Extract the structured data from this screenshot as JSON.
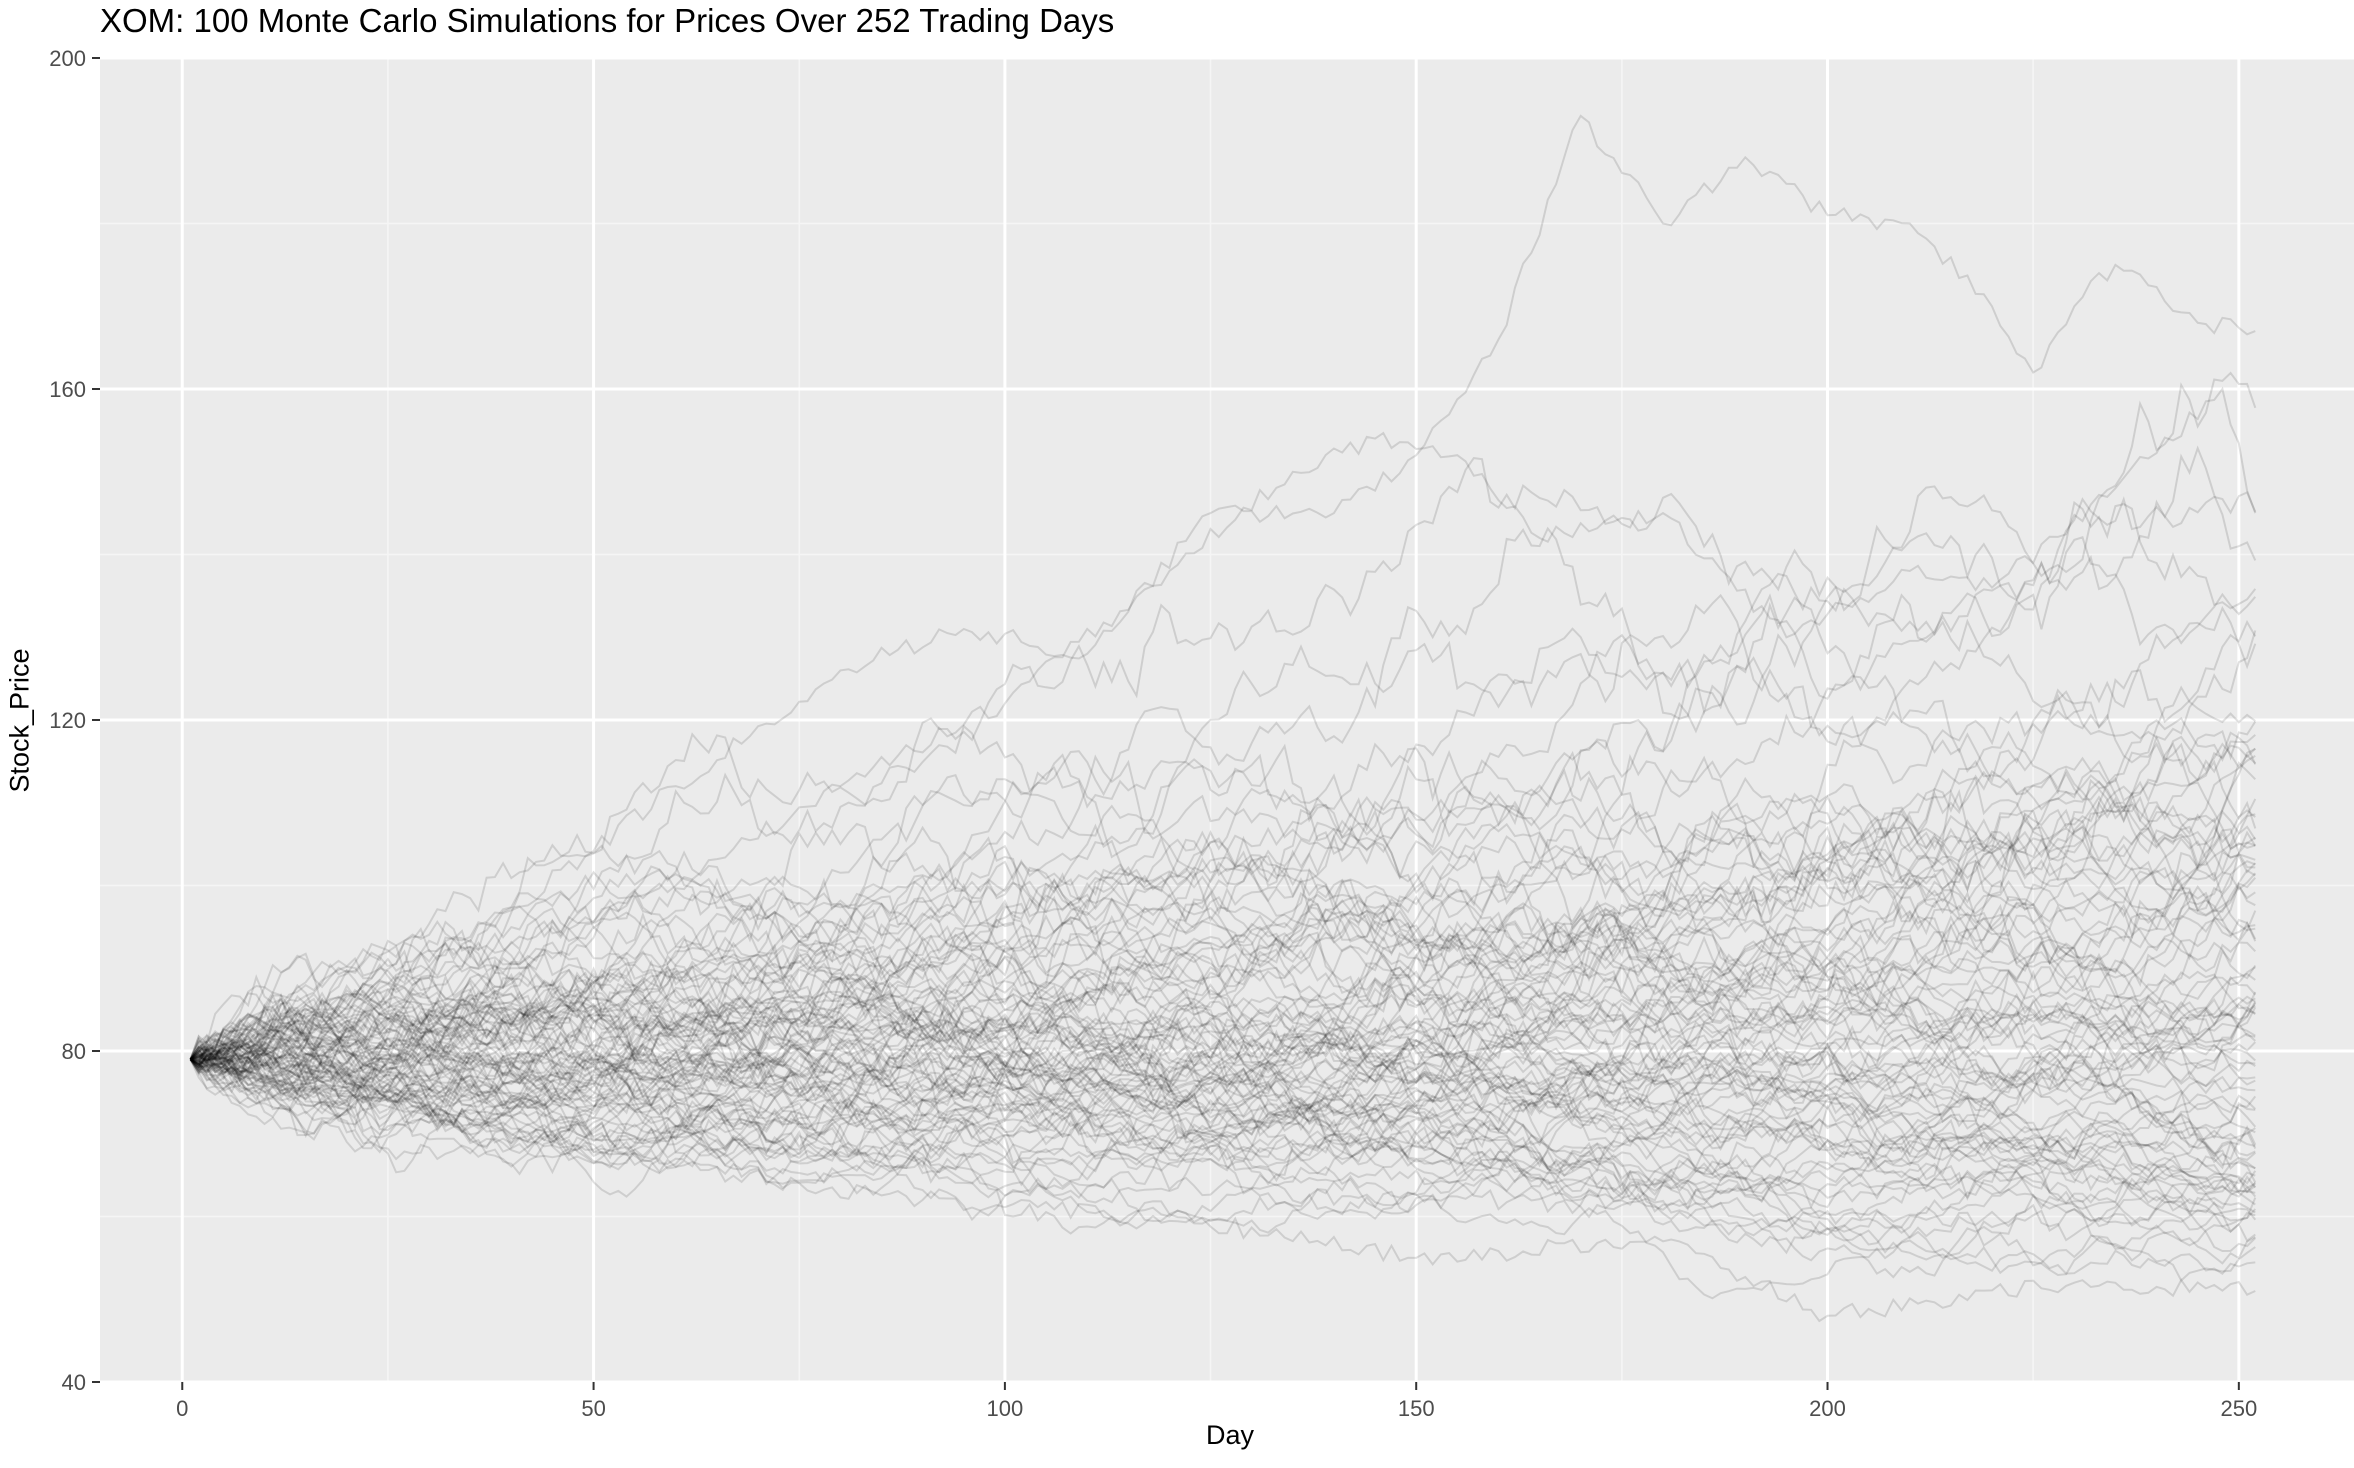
{
  "chart_data": {
    "type": "line",
    "title": "XOM: 100 Monte Carlo Simulations for Prices Over 252 Trading Days",
    "xlabel": "Day",
    "ylabel": "Stock_Price",
    "xlim": [
      -10,
      264
    ],
    "ylim": [
      40,
      200
    ],
    "x_ticks": [
      0,
      50,
      100,
      150,
      200,
      250
    ],
    "y_ticks": [
      40,
      80,
      120,
      160,
      200
    ],
    "x_tick_labels": [
      "0",
      "50",
      "100",
      "150",
      "200",
      "250"
    ],
    "y_tick_labels": [
      "40",
      "80",
      "120",
      "160",
      "200"
    ],
    "grid": true,
    "legend": "none",
    "simulation": {
      "count": 100,
      "days": 252,
      "start_price": 79,
      "line_color": "#000000",
      "line_opacity": 0.12
    },
    "highlighted_paths": [
      {
        "name": "",
        "points": [
          [
            1,
            79
          ],
          [
            20,
            86
          ],
          [
            40,
            97
          ],
          [
            60,
            112
          ],
          [
            80,
            126
          ],
          [
            95,
            131
          ],
          [
            110,
            128
          ],
          [
            125,
            145
          ],
          [
            140,
            145
          ],
          [
            150,
            152
          ],
          [
            160,
            166
          ],
          [
            170,
            193
          ],
          [
            180,
            180
          ],
          [
            190,
            188
          ],
          [
            200,
            181
          ],
          [
            210,
            180
          ],
          [
            220,
            170
          ],
          [
            225,
            162
          ],
          [
            230,
            170
          ],
          [
            235,
            175
          ],
          [
            245,
            168
          ],
          [
            252,
            167
          ]
        ]
      },
      {
        "name": "",
        "points": [
          [
            1,
            79
          ],
          [
            20,
            84
          ],
          [
            40,
            93
          ],
          [
            60,
            100
          ],
          [
            80,
            112
          ],
          [
            100,
            122
          ],
          [
            120,
            138
          ],
          [
            135,
            150
          ],
          [
            145,
            154
          ],
          [
            155,
            152
          ],
          [
            165,
            142
          ],
          [
            180,
            145
          ],
          [
            195,
            130
          ],
          [
            210,
            138
          ],
          [
            220,
            136
          ],
          [
            235,
            148
          ],
          [
            248,
            160
          ],
          [
            252,
            145
          ]
        ]
      },
      {
        "name": "",
        "points": [
          [
            1,
            79
          ],
          [
            30,
            72
          ],
          [
            60,
            66
          ],
          [
            90,
            62
          ],
          [
            120,
            60
          ],
          [
            150,
            55
          ],
          [
            180,
            57
          ],
          [
            200,
            48
          ],
          [
            230,
            52
          ],
          [
            252,
            51
          ]
        ]
      }
    ],
    "colors": {
      "panel_background": "#ebebeb",
      "grid_major": "#ffffff",
      "grid_minor": "#f5f5f5",
      "axis_text": "#4d4d4d"
    }
  }
}
